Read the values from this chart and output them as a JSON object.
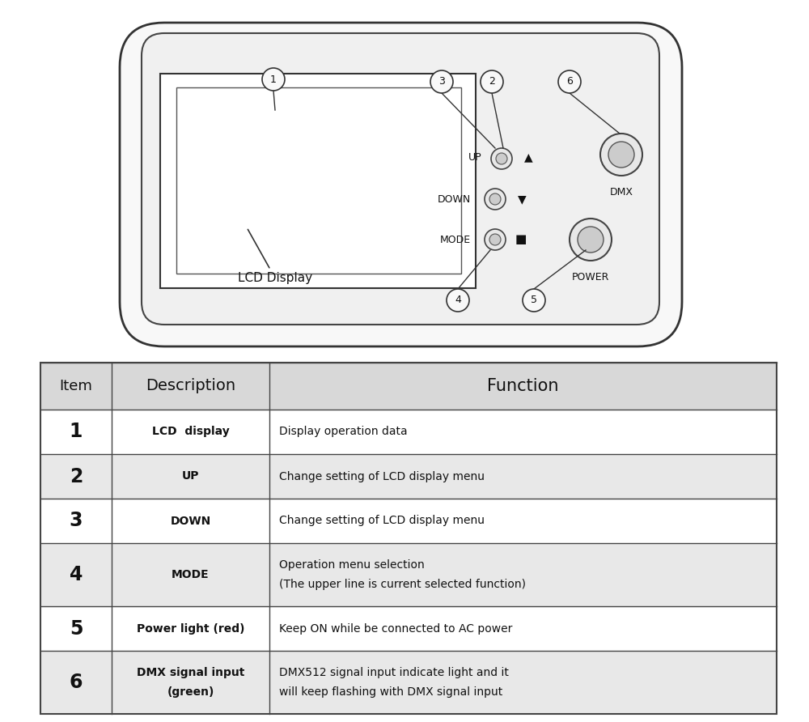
{
  "bg_color": "#ffffff",
  "border_color": "#444444",
  "text_color": "#111111",
  "table_header": [
    "Item",
    "Description",
    "Function"
  ],
  "table_rows": [
    [
      "1",
      "LCD  display",
      "Display operation data"
    ],
    [
      "2",
      "UP",
      "Change setting of LCD display menu"
    ],
    [
      "3",
      "DOWN",
      "Change setting of LCD display menu"
    ],
    [
      "4",
      "MODE",
      "Operation menu selection\n(The upper line is current selected function)"
    ],
    [
      "5",
      "Power light (red)",
      "Keep ON while be connected to AC power"
    ],
    [
      "6",
      "DMX signal input\n(green)",
      "DMX512 signal input indicate light and it\nwill keep flashing with DMX signal input"
    ]
  ],
  "header_bg": "#d8d8d8",
  "row_bg_odd": "#ffffff",
  "row_bg_even": "#e8e8e8",
  "device_bg": "#f8f8f8",
  "panel_bg": "#f0f0f0"
}
